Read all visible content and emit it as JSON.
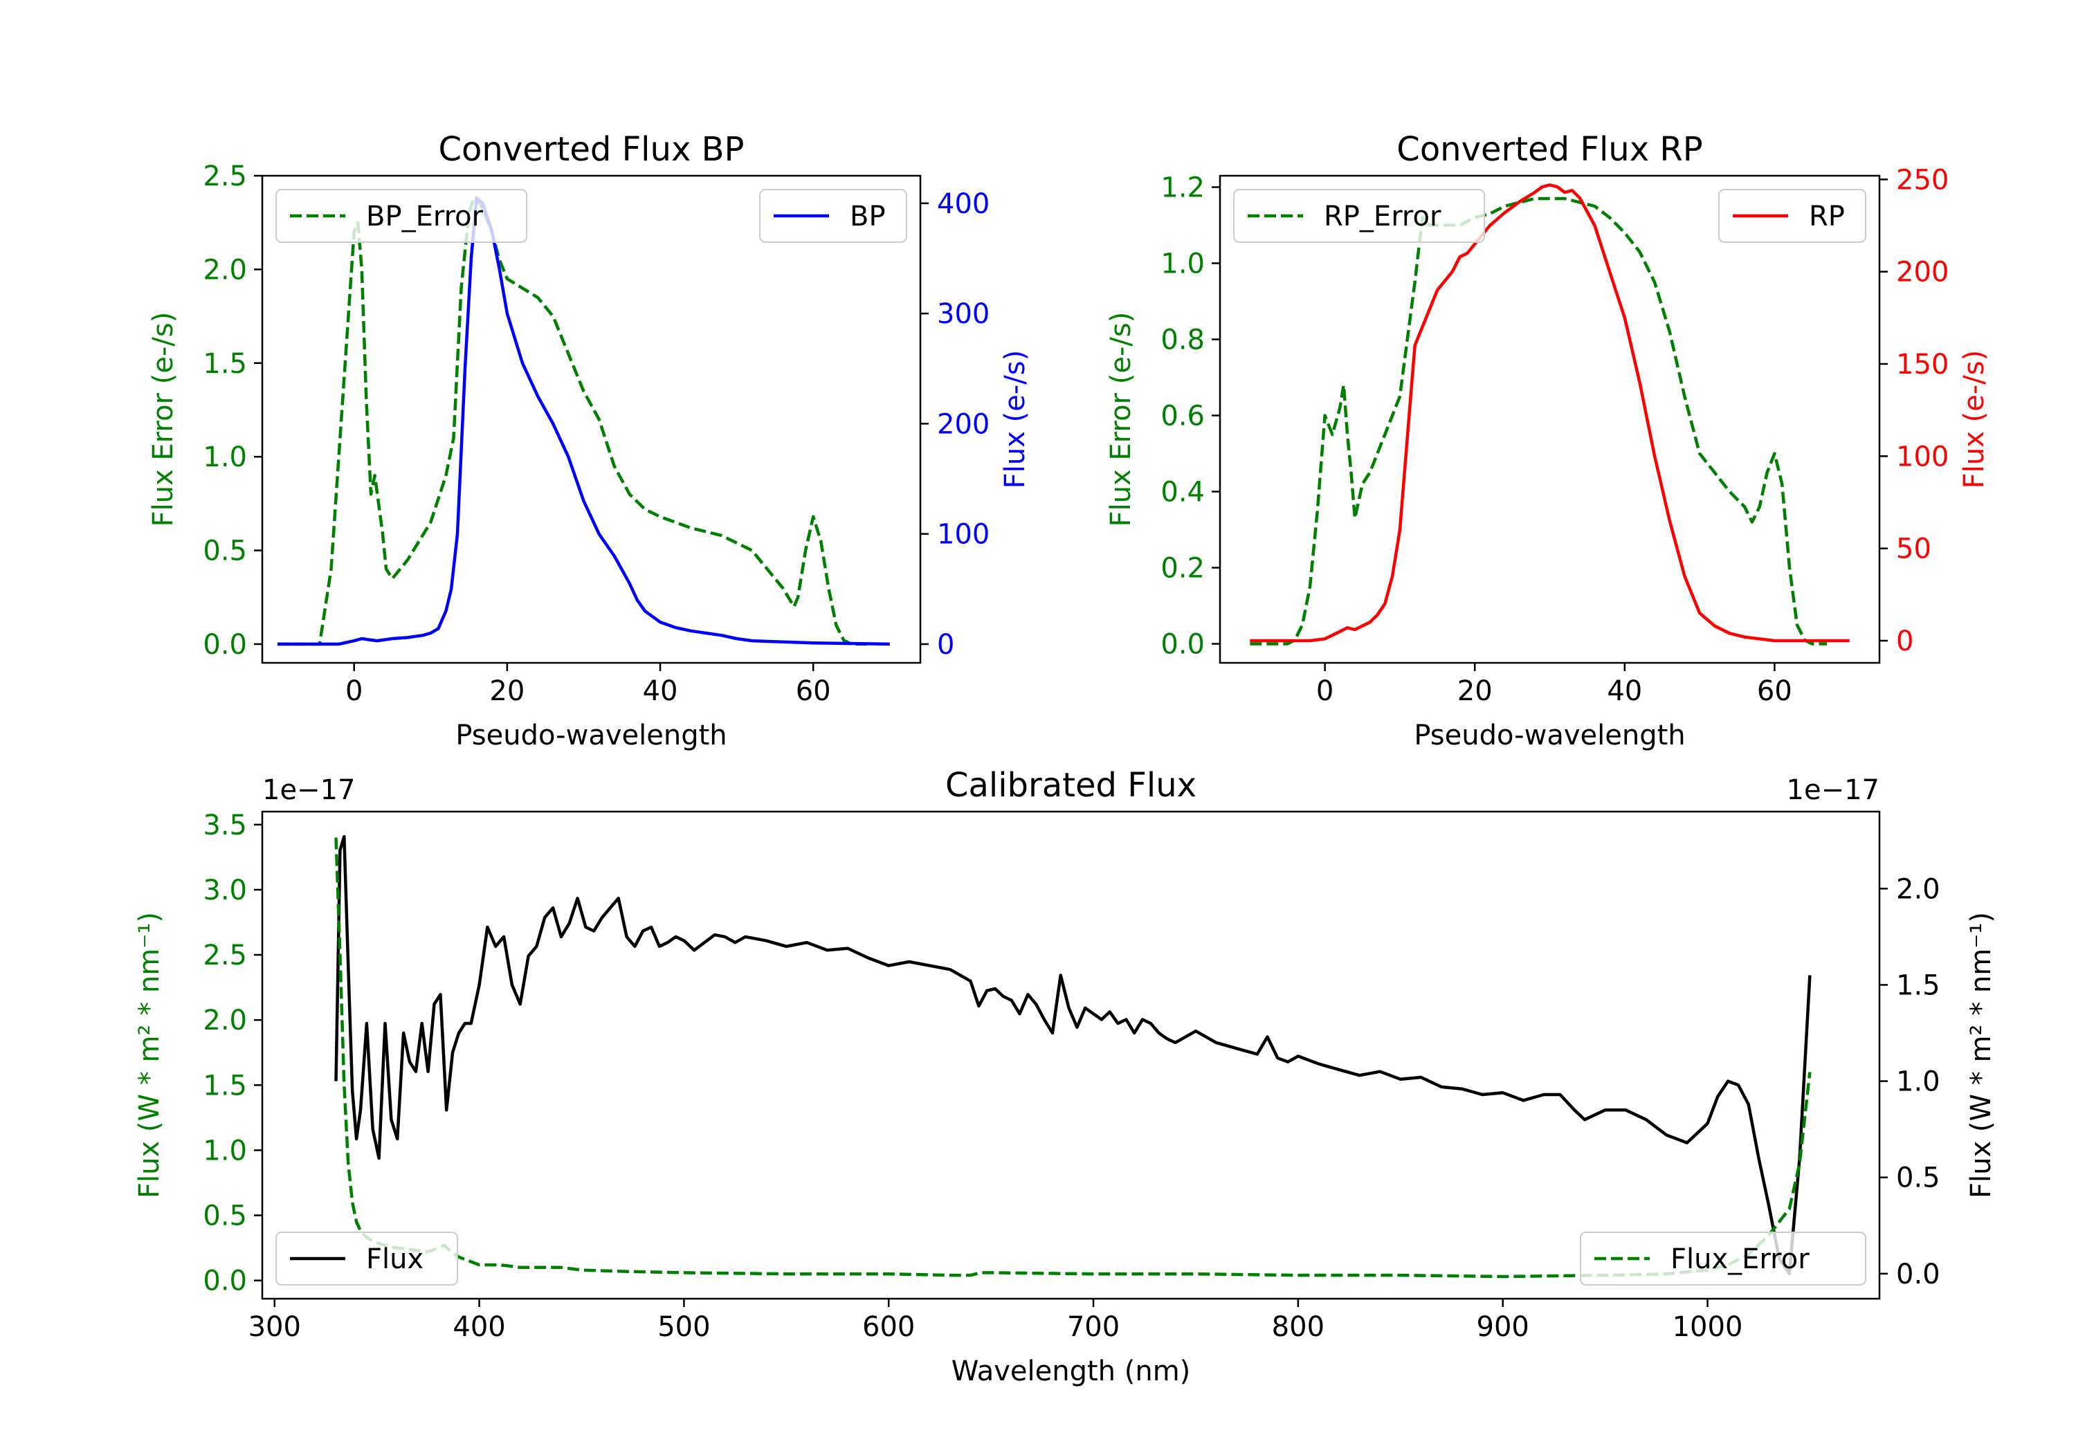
{
  "chart_data": [
    {
      "type": "line",
      "title": "Converted Flux BP",
      "xlabel": "Pseudo-wavelength",
      "ylabel_left": "Flux Error (e-/s)",
      "ylabel_right": "Flux (e-/s)",
      "xlim": [
        -12,
        74
      ],
      "ylim_left": [
        -0.1,
        2.5
      ],
      "ylim_right": [
        -17,
        425
      ],
      "xticks": [
        0,
        20,
        40,
        60
      ],
      "yticks_left": [
        0.0,
        0.5,
        1.0,
        1.5,
        2.0,
        2.5
      ],
      "yticks_right": [
        0,
        100,
        200,
        300,
        400
      ],
      "legend": [
        {
          "label": "BP_Error",
          "position": "top-left"
        },
        {
          "label": "BP",
          "position": "top-right"
        }
      ],
      "series": [
        {
          "name": "BP_Error",
          "axis": "left",
          "color": "#008000",
          "dash": "dashed",
          "x": [
            -10,
            -4.5,
            -3,
            -1.5,
            0,
            0.5,
            1,
            1.6,
            2.2,
            2.7,
            3.2,
            3.7,
            4.2,
            5,
            7,
            10,
            12,
            13,
            14,
            15,
            15.6,
            16.5,
            18,
            19,
            20,
            22,
            24,
            26,
            28,
            30,
            32,
            34,
            36,
            38,
            40,
            44,
            48,
            52,
            56,
            57.5,
            58,
            59,
            60,
            61,
            62,
            63,
            64,
            65,
            66,
            67
          ],
          "y": [
            0,
            0,
            0.4,
            1.3,
            2.2,
            2.25,
            2.0,
            1.3,
            0.8,
            0.9,
            0.75,
            0.6,
            0.4,
            0.35,
            0.45,
            0.65,
            0.9,
            1.1,
            1.9,
            2.3,
            2.38,
            2.35,
            2.2,
            2.05,
            1.95,
            1.9,
            1.85,
            1.75,
            1.55,
            1.35,
            1.2,
            0.95,
            0.8,
            0.72,
            0.68,
            0.62,
            0.58,
            0.5,
            0.3,
            0.2,
            0.25,
            0.5,
            0.68,
            0.55,
            0.3,
            0.1,
            0.02,
            0,
            0,
            0
          ]
        },
        {
          "name": "BP",
          "axis": "right",
          "color": "#0000ff",
          "dash": "solid",
          "x": [
            -10,
            -2,
            0,
            1,
            2,
            3,
            5,
            7,
            9,
            10,
            11,
            12,
            12.7,
            13.5,
            14.5,
            15.3,
            16,
            16.8,
            18,
            19,
            20,
            22,
            24,
            26,
            28,
            30,
            32,
            33,
            34,
            36,
            37,
            38,
            40,
            42,
            44,
            46,
            48,
            50,
            52,
            56,
            60,
            70
          ],
          "y": [
            0,
            0,
            3,
            5,
            4,
            3,
            5,
            6,
            8,
            10,
            14,
            30,
            50,
            100,
            250,
            350,
            405,
            400,
            375,
            340,
            300,
            255,
            225,
            200,
            170,
            130,
            100,
            90,
            80,
            55,
            40,
            30,
            20,
            15,
            12,
            10,
            8,
            5,
            3,
            2,
            1,
            0
          ]
        }
      ]
    },
    {
      "type": "line",
      "title": "Converted Flux RP",
      "xlabel": "Pseudo-wavelength",
      "ylabel_left": "Flux Error (e-/s)",
      "ylabel_right": "Flux (e-/s)",
      "xlim": [
        -14,
        74
      ],
      "ylim_left": [
        -0.05,
        1.23
      ],
      "ylim_right": [
        -12,
        252
      ],
      "xticks": [
        0,
        20,
        40,
        60
      ],
      "yticks_left": [
        0.0,
        0.2,
        0.4,
        0.6,
        0.8,
        1.0,
        1.2
      ],
      "yticks_right": [
        0,
        50,
        100,
        150,
        200,
        250
      ],
      "legend": [
        {
          "label": "RP_Error",
          "position": "top-left"
        },
        {
          "label": "RP",
          "position": "top-right"
        }
      ],
      "series": [
        {
          "name": "RP_Error",
          "axis": "left",
          "color": "#008000",
          "dash": "dashed",
          "x": [
            -10,
            -5,
            -4,
            -3,
            -2,
            -1,
            0,
            1,
            2,
            2.5,
            3,
            3.5,
            4,
            5,
            6,
            7,
            8,
            9,
            10,
            11,
            12,
            13,
            14,
            16,
            18,
            20,
            22,
            24,
            26,
            28,
            30,
            32,
            34,
            36,
            38,
            40,
            42,
            44,
            46,
            48,
            50,
            52,
            54,
            56,
            57,
            58,
            59,
            60,
            61,
            62,
            63,
            64,
            65,
            67
          ],
          "y": [
            0,
            0,
            0.01,
            0.05,
            0.15,
            0.35,
            0.6,
            0.55,
            0.62,
            0.68,
            0.55,
            0.45,
            0.33,
            0.42,
            0.45,
            0.5,
            0.55,
            0.6,
            0.65,
            0.8,
            0.95,
            1.12,
            1.1,
            1.1,
            1.1,
            1.12,
            1.13,
            1.15,
            1.16,
            1.17,
            1.17,
            1.17,
            1.16,
            1.15,
            1.12,
            1.08,
            1.03,
            0.95,
            0.82,
            0.65,
            0.5,
            0.45,
            0.4,
            0.36,
            0.32,
            0.36,
            0.45,
            0.5,
            0.42,
            0.2,
            0.05,
            0.01,
            0,
            0
          ]
        },
        {
          "name": "RP",
          "axis": "right",
          "color": "#ff0000",
          "dash": "solid",
          "x": [
            -10,
            -4,
            -2,
            0,
            2,
            3,
            4,
            6,
            7,
            8,
            9,
            10,
            11,
            12,
            13,
            14,
            15,
            16,
            17,
            18,
            19,
            20,
            22,
            24,
            26,
            28,
            29,
            30,
            31,
            32,
            33,
            34,
            36,
            38,
            40,
            42,
            44,
            46,
            48,
            50,
            52,
            54,
            56,
            58,
            60,
            62,
            64,
            70
          ],
          "y": [
            0,
            0,
            0,
            1,
            5,
            7,
            6,
            10,
            14,
            20,
            35,
            60,
            110,
            160,
            170,
            180,
            190,
            195,
            200,
            208,
            210,
            215,
            225,
            232,
            238,
            243,
            246,
            247,
            246,
            243,
            244,
            240,
            225,
            200,
            175,
            140,
            100,
            65,
            35,
            15,
            8,
            4,
            2,
            1,
            0,
            0,
            0,
            0
          ]
        }
      ]
    },
    {
      "type": "line",
      "title": "Calibrated Flux",
      "xlabel": "Wavelength (nm)",
      "ylabel_left": "Flux (W * m² * nm⁻¹)",
      "ylabel_right": "Flux (W * m² * nm⁻¹)",
      "offset_left": "1e−17",
      "offset_right": "1e−17",
      "xlim": [
        294,
        1084
      ],
      "ylim_left": [
        -0.14,
        3.6
      ],
      "ylim_right": [
        -0.13,
        2.4
      ],
      "xticks": [
        300,
        400,
        500,
        600,
        700,
        800,
        900,
        1000
      ],
      "yticks_left": [
        0.0,
        0.5,
        1.0,
        1.5,
        2.0,
        2.5,
        3.0,
        3.5
      ],
      "yticks_right": [
        0.0,
        0.5,
        1.0,
        1.5,
        2.0
      ],
      "legend": [
        {
          "label": "Flux",
          "position": "bottom-left"
        },
        {
          "label": "Flux_Error",
          "position": "bottom-right"
        }
      ],
      "series": [
        {
          "name": "Flux",
          "axis": "right",
          "color": "#000000",
          "dash": "solid",
          "x": [
            330,
            332,
            334,
            336,
            338,
            340,
            342,
            345,
            348,
            351,
            354,
            357,
            360,
            363,
            366,
            369,
            372,
            375,
            378,
            381,
            384,
            387,
            390,
            393,
            396,
            400,
            404,
            408,
            412,
            416,
            420,
            424,
            428,
            432,
            436,
            440,
            444,
            448,
            452,
            456,
            460,
            464,
            468,
            472,
            476,
            480,
            484,
            488,
            492,
            496,
            500,
            505,
            510,
            515,
            520,
            525,
            530,
            540,
            550,
            560,
            570,
            580,
            590,
            600,
            610,
            620,
            630,
            640,
            644,
            648,
            652,
            656,
            660,
            664,
            668,
            672,
            676,
            680,
            684,
            688,
            692,
            696,
            700,
            704,
            708,
            712,
            716,
            720,
            724,
            728,
            732,
            736,
            740,
            750,
            760,
            770,
            780,
            785,
            790,
            795,
            800,
            810,
            820,
            830,
            840,
            850,
            860,
            870,
            880,
            890,
            900,
            910,
            920,
            928,
            935,
            940,
            950,
            960,
            970,
            980,
            990,
            1000,
            1005,
            1010,
            1015,
            1020,
            1025,
            1030,
            1035,
            1040,
            1045,
            1050
          ],
          "y": [
            1.0,
            2.2,
            2.27,
            1.6,
            0.95,
            0.7,
            0.85,
            1.3,
            0.75,
            0.6,
            1.3,
            0.8,
            0.7,
            1.25,
            1.1,
            1.05,
            1.3,
            1.05,
            1.4,
            1.45,
            0.85,
            1.15,
            1.25,
            1.3,
            1.3,
            1.5,
            1.8,
            1.7,
            1.75,
            1.5,
            1.4,
            1.65,
            1.7,
            1.85,
            1.9,
            1.75,
            1.82,
            1.95,
            1.8,
            1.78,
            1.85,
            1.9,
            1.95,
            1.75,
            1.7,
            1.78,
            1.8,
            1.7,
            1.72,
            1.75,
            1.73,
            1.68,
            1.72,
            1.76,
            1.75,
            1.72,
            1.75,
            1.73,
            1.7,
            1.72,
            1.68,
            1.69,
            1.64,
            1.6,
            1.62,
            1.6,
            1.58,
            1.52,
            1.39,
            1.47,
            1.48,
            1.44,
            1.42,
            1.35,
            1.45,
            1.4,
            1.32,
            1.25,
            1.55,
            1.38,
            1.28,
            1.38,
            1.35,
            1.32,
            1.36,
            1.3,
            1.32,
            1.25,
            1.32,
            1.3,
            1.25,
            1.22,
            1.2,
            1.26,
            1.2,
            1.17,
            1.14,
            1.23,
            1.12,
            1.1,
            1.13,
            1.09,
            1.06,
            1.03,
            1.05,
            1.01,
            1.02,
            0.97,
            0.96,
            0.93,
            0.94,
            0.9,
            0.93,
            0.93,
            0.85,
            0.8,
            0.85,
            0.85,
            0.8,
            0.72,
            0.68,
            0.78,
            0.92,
            1.0,
            0.98,
            0.88,
            0.6,
            0.35,
            0.08,
            0.0,
            0.6,
            1.55
          ]
        },
        {
          "name": "Flux_Error",
          "axis": "left",
          "color": "#008000",
          "dash": "dashed",
          "x": [
            330,
            332,
            334,
            336,
            338,
            340,
            342,
            345,
            348,
            352,
            356,
            360,
            365,
            370,
            375,
            380,
            383,
            386,
            390,
            395,
            400,
            405,
            410,
            415,
            420,
            430,
            440,
            450,
            470,
            500,
            550,
            600,
            630,
            640,
            645,
            650,
            700,
            750,
            800,
            850,
            900,
            950,
            980,
            1000,
            1010,
            1020,
            1030,
            1040,
            1045,
            1050
          ],
          "y": [
            3.4,
            2.5,
            1.5,
            0.9,
            0.6,
            0.45,
            0.38,
            0.33,
            0.3,
            0.28,
            0.26,
            0.25,
            0.24,
            0.23,
            0.22,
            0.25,
            0.27,
            0.22,
            0.18,
            0.15,
            0.12,
            0.12,
            0.12,
            0.11,
            0.1,
            0.1,
            0.1,
            0.08,
            0.07,
            0.06,
            0.05,
            0.05,
            0.04,
            0.04,
            0.06,
            0.06,
            0.05,
            0.05,
            0.04,
            0.04,
            0.03,
            0.04,
            0.05,
            0.08,
            0.12,
            0.2,
            0.35,
            0.55,
            0.9,
            1.6
          ]
        }
      ]
    }
  ]
}
